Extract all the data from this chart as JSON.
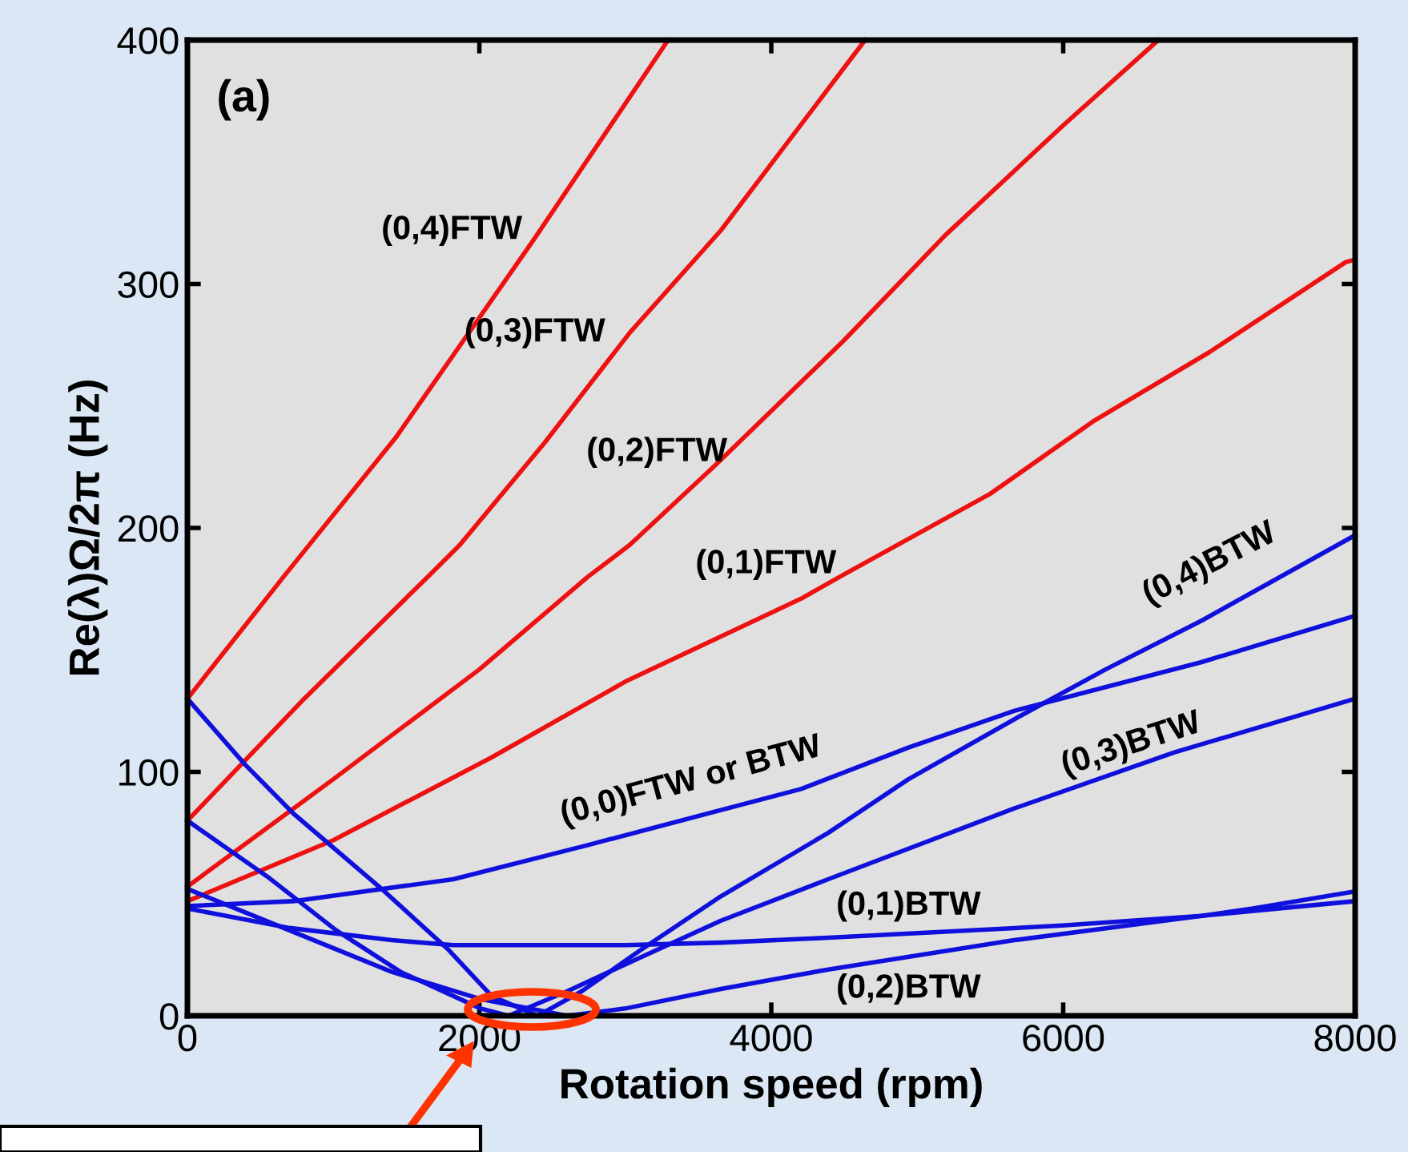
{
  "chart_data": {
    "type": "line",
    "xlabel": "Rotation speed (rpm)",
    "ylabel": "Re(λ)Ω/2π (Hz)",
    "xlim": [
      0,
      8000
    ],
    "xticks": [
      0,
      2000,
      4000,
      6000,
      8000
    ],
    "ylim": [
      0,
      400
    ],
    "yticks": [
      0,
      100,
      200,
      300,
      400
    ],
    "grid": false,
    "legend": false,
    "marker": "none",
    "line_style": "solid",
    "series": [
      {
        "name": "(0,4)FTW",
        "color": "#ee1111",
        "x": [
          0,
          659,
          1427,
          2371,
          3293
        ],
        "values": [
          130,
          180,
          237,
          318,
          400
        ]
      },
      {
        "name": "(0,3)FTW",
        "color": "#ee1111",
        "x": [
          0,
          800,
          1647,
          1866,
          2448,
          3030,
          3655,
          4643
        ],
        "values": [
          80,
          130,
          180,
          193,
          235,
          280,
          322,
          400
        ]
      },
      {
        "name": "(0,2)FTW",
        "color": "#ee1111",
        "x": [
          0,
          1000,
          2000,
          2744,
          3030,
          3622,
          4500,
          5192,
          6000,
          6652
        ],
        "values": [
          53,
          97,
          142,
          180,
          193,
          226,
          277,
          320,
          365,
          400
        ]
      },
      {
        "name": "(0,1)FTW",
        "color": "#ee1111",
        "x": [
          0,
          1000,
          2086,
          3000,
          4204,
          4500,
          5500,
          6213,
          7000,
          7936,
          8000
        ],
        "values": [
          47,
          72,
          106,
          137,
          171,
          181,
          214,
          244,
          272,
          309,
          310
        ]
      },
      {
        "name": "(0,0)FTW or BTW",
        "color": "#1010dd",
        "x": [
          0,
          725,
          1822,
          2744,
          4204,
          4940,
          5664,
          6948,
          8000
        ],
        "values": [
          45,
          47,
          56,
          70,
          93,
          110,
          125,
          145,
          164
        ]
      },
      {
        "name": "(0,1)BTW",
        "color": "#1010dd",
        "x": [
          0,
          700,
          1400,
          1822,
          3000,
          3655,
          4390,
          5993,
          6948,
          7300,
          8000
        ],
        "values": [
          44,
          36,
          31,
          29,
          29,
          30,
          32,
          37,
          41,
          44,
          51
        ]
      },
      {
        "name": "(0,2)BTW",
        "color": "#1010dd",
        "x": [
          0,
          700,
          1400,
          2000,
          2600,
          3000,
          3655,
          4390,
          5664,
          6948,
          8000
        ],
        "values": [
          52,
          35,
          18,
          7,
          0,
          3,
          11,
          19,
          31,
          41,
          47
        ]
      },
      {
        "name": "(0,3)BTW",
        "color": "#1010dd",
        "x": [
          0,
          549,
          1020,
          1460,
          2009,
          2200,
          2600,
          3106,
          3655,
          4390,
          5664,
          6762,
          8000
        ],
        "values": [
          80,
          57,
          35,
          18,
          3,
          0,
          10,
          24,
          39,
          56,
          85,
          108,
          130
        ]
      },
      {
        "name": "(0,4)BTW",
        "color": "#1010dd",
        "x": [
          0,
          395,
          725,
          1350,
          1790,
          2086,
          2400,
          2700,
          3106,
          3655,
          4390,
          4940,
          5708,
          6290,
          6948,
          8000
        ],
        "values": [
          130,
          103,
          83,
          51,
          27,
          8,
          0,
          10,
          27,
          49,
          75,
          97,
          123,
          142,
          162,
          197
        ]
      }
    ],
    "annotations": [
      "(a)"
    ]
  }
}
